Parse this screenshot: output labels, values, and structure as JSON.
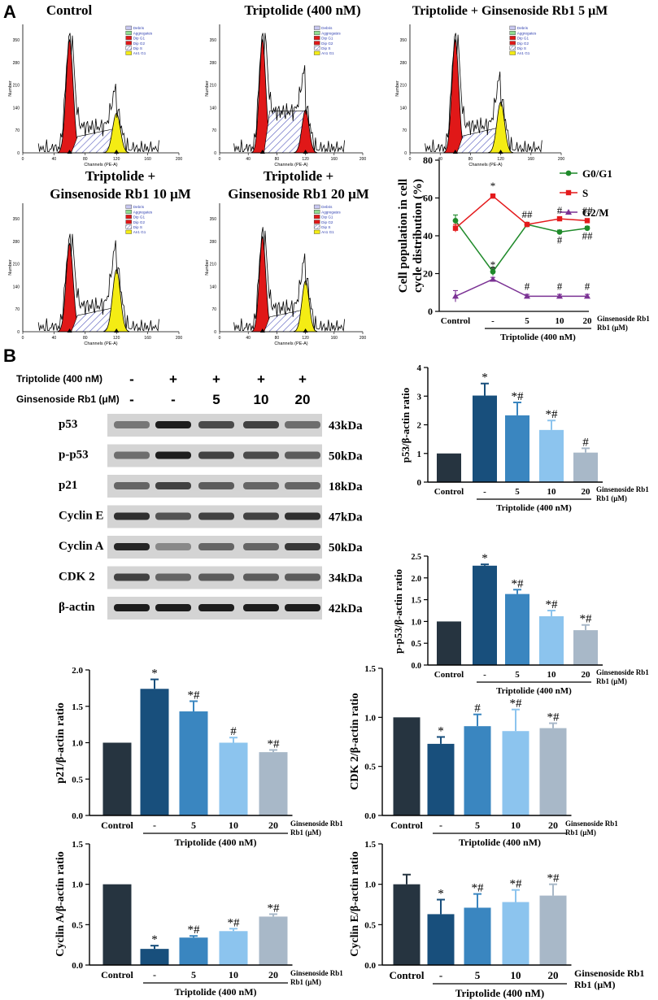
{
  "panels": {
    "a_label": "A",
    "b_label": "B"
  },
  "flow": {
    "plots": [
      {
        "title_lines": [
          "Control"
        ]
      },
      {
        "title_lines": [
          "Triptolide (400 nM)"
        ]
      },
      {
        "title_lines": [
          "Triptolide + Ginsenoside Rb1 5 μM"
        ]
      },
      {
        "title_lines": [
          "Triptolide +",
          "Ginsenoside Rb1 10 μM"
        ]
      },
      {
        "title_lines": [
          "Triptolide +",
          "Ginsenoside Rb1 20 μM"
        ]
      }
    ],
    "x_axis_label": "Channels (PE-A)",
    "y_axis_label": "Number",
    "x_ticks": [
      "0",
      "40",
      "80",
      "120",
      "160",
      "200"
    ],
    "y_ticks": [
      "0",
      "70",
      "140",
      "210",
      "280",
      "350",
      "400"
    ],
    "legend": [
      "Debris",
      "Aggregates",
      "Dip G1",
      "Dip G2",
      "Dip S",
      "An1 G1"
    ]
  },
  "western": {
    "treatment_rows": [
      {
        "label": "Triptolide (400 nM)",
        "values": [
          "-",
          "+",
          "+",
          "+",
          "+"
        ]
      },
      {
        "label": "Ginsenoside Rb1 (μM)",
        "values": [
          "-",
          "-",
          "5",
          "10",
          "20"
        ]
      }
    ],
    "bands": [
      {
        "protein": "p53",
        "mw": "43kDa"
      },
      {
        "protein": "p-p53",
        "mw": "50kDa"
      },
      {
        "protein": "p21",
        "mw": "18kDa"
      },
      {
        "protein": "Cyclin E",
        "mw": "47kDa"
      },
      {
        "protein": "Cyclin A",
        "mw": "50kDa"
      },
      {
        "protein": "CDK 2",
        "mw": "34kDa"
      },
      {
        "protein": "β-actin",
        "mw": "42kDa"
      }
    ]
  },
  "colors": {
    "control": "#263440",
    "triptolide": "#184f7c",
    "rb1_5": "#3a86c0",
    "rb1_10": "#8cc4ee",
    "rb1_20": "#a8b8c8",
    "g0g1": "#1f8a2a",
    "s": "#e41a1c",
    "g2m": "#7b3294"
  },
  "chart_data": [
    {
      "id": "cell-cycle",
      "type": "line",
      "ylabel": "Cell population in cell cycle distribution (%)",
      "categories": [
        "Control",
        "-",
        "5",
        "10",
        "20"
      ],
      "group_label": "Triptolide (400 nM)",
      "extra_label": "Ginsenoside Rb1 (μM)",
      "ylim": [
        0,
        80
      ],
      "yticks": [
        0,
        20,
        40,
        60,
        80
      ],
      "series": [
        {
          "name": "G0/G1",
          "values": [
            48,
            21,
            46,
            42,
            44
          ],
          "errors": [
            3,
            2,
            1,
            1,
            1
          ],
          "marks": [
            "",
            "*",
            "",
            "#",
            "##"
          ]
        },
        {
          "name": "S",
          "values": [
            44,
            61,
            46,
            49,
            48
          ],
          "errors": [
            2,
            1,
            1,
            1,
            1
          ],
          "marks": [
            "",
            "*",
            "##",
            "#",
            "##"
          ]
        },
        {
          "name": "G2/M",
          "values": [
            8,
            17,
            8,
            8,
            8
          ],
          "errors": [
            3,
            1,
            1,
            1,
            1
          ],
          "marks": [
            "",
            "*",
            "#",
            "#",
            "#"
          ]
        }
      ]
    },
    {
      "id": "p53",
      "type": "bar",
      "ylabel": "p53/β-actin ratio",
      "categories": [
        "Control",
        "-",
        "5",
        "10",
        "20"
      ],
      "group_label": "Triptolide (400 nM)",
      "extra_label": "Ginsenoside Rb1 (μM)",
      "values": [
        1.0,
        3.02,
        2.33,
        1.82,
        1.03
      ],
      "errors": [
        0,
        0.42,
        0.45,
        0.33,
        0.15
      ],
      "marks": [
        "",
        "*",
        "*#",
        "*#",
        "#"
      ],
      "ylim": [
        0,
        4
      ],
      "yticks": [
        "0",
        "1",
        "2",
        "3",
        "4"
      ]
    },
    {
      "id": "p-p53",
      "type": "bar",
      "ylabel": "p-p53/β-actin ratio",
      "categories": [
        "Control",
        "-",
        "5",
        "10",
        "20"
      ],
      "group_label": "Triptolide (400 nM)",
      "extra_label": "Ginsenoside Rb1 (μM)",
      "values": [
        1.0,
        2.28,
        1.63,
        1.12,
        0.8
      ],
      "errors": [
        0,
        0.03,
        0.1,
        0.13,
        0.12
      ],
      "marks": [
        "",
        "*",
        "*#",
        "*#",
        "*#"
      ],
      "ylim": [
        0,
        2.5
      ],
      "yticks": [
        "0.0",
        "0.5",
        "1.0",
        "1.5",
        "2.0",
        "2.5"
      ]
    },
    {
      "id": "p21",
      "type": "bar",
      "ylabel": "p21/β-actin ratio",
      "categories": [
        "Control",
        "-",
        "5",
        "10",
        "20"
      ],
      "group_label": "Triptolide (400 nM)",
      "extra_label": "Ginsenoside Rb1 (μM)",
      "values": [
        1.0,
        1.74,
        1.43,
        1.0,
        0.87
      ],
      "errors": [
        0,
        0.13,
        0.14,
        0.07,
        0.03
      ],
      "marks": [
        "",
        "*",
        "*#",
        "#",
        "*#"
      ],
      "ylim": [
        0,
        2.0
      ],
      "yticks": [
        "0.0",
        "0.5",
        "1.0",
        "1.5",
        "2.0"
      ]
    },
    {
      "id": "cdk2",
      "type": "bar",
      "ylabel": "CDK 2/β-actin ratio",
      "categories": [
        "Control",
        "-",
        "5",
        "10",
        "20"
      ],
      "group_label": "Triptolide (400 nM)",
      "extra_label": "Ginsenoside Rb1 (μM)",
      "values": [
        1.0,
        0.73,
        0.91,
        0.86,
        0.89
      ],
      "errors": [
        0,
        0.07,
        0.12,
        0.22,
        0.05
      ],
      "marks": [
        "",
        "*",
        "#",
        "*#",
        "*#"
      ],
      "ylim": [
        0,
        1.5
      ],
      "yticks": [
        "0.0",
        "0.5",
        "1.0",
        "1.5"
      ]
    },
    {
      "id": "cyclin-a",
      "type": "bar",
      "ylabel": "Cyclin A/β-actin ratio",
      "categories": [
        "Control",
        "-",
        "5",
        "10",
        "20"
      ],
      "group_label": "Triptolide (400 nM)",
      "extra_label": "Ginsenoside Rb1 (μM)",
      "values": [
        1.0,
        0.2,
        0.34,
        0.42,
        0.6
      ],
      "errors": [
        0,
        0.04,
        0.02,
        0.03,
        0.03
      ],
      "marks": [
        "",
        "*",
        "*#",
        "*#",
        "*#"
      ],
      "ylim": [
        0,
        1.5
      ],
      "yticks": [
        "0.0",
        "0.5",
        "1.0",
        "1.5"
      ]
    },
    {
      "id": "cyclin-e",
      "type": "bar",
      "ylabel": "Cyclin E/β-actin ratio",
      "categories": [
        "Control",
        "-",
        "5",
        "10",
        "20"
      ],
      "group_label": "Triptolide (400 nM)",
      "extra_label": "Ginsenoside Rb1 (μM)",
      "values": [
        1.0,
        0.63,
        0.71,
        0.78,
        0.86
      ],
      "errors": [
        0.12,
        0.18,
        0.17,
        0.15,
        0.14
      ],
      "marks": [
        "",
        "*",
        "*#",
        "*#",
        "*#"
      ],
      "ylim": [
        0,
        1.5
      ],
      "yticks": [
        "0.0",
        "0.5",
        "1.0",
        "1.5"
      ]
    }
  ]
}
